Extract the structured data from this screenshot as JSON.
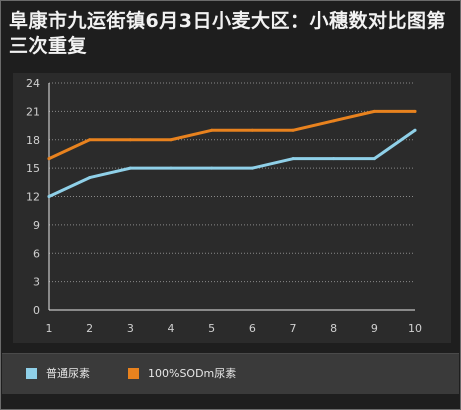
{
  "title": "阜康市九运街镇6月3日小麦大区：小穗数对比图第三次重复",
  "colors": {
    "background": "#1e1e1e",
    "plot_background": "#2b2b2b",
    "legend_background": "#3a3a3a",
    "grid": "#8a8a8a",
    "axis_text": "#d0d0d0"
  },
  "chart_data": {
    "type": "line",
    "title": "阜康市九运街镇6月3日小麦大区：小穗数对比图第三次重复",
    "x": [
      1,
      2,
      3,
      4,
      5,
      6,
      7,
      8,
      9,
      10
    ],
    "xlim": [
      1,
      10
    ],
    "ylim": [
      0,
      24
    ],
    "yticks": [
      0,
      3,
      6,
      9,
      12,
      15,
      18,
      21,
      24
    ],
    "grid": true,
    "legend_position": "bottom",
    "series": [
      {
        "name": "普通尿素",
        "color": "#8fd0e8",
        "values": [
          12,
          14,
          15,
          15,
          15,
          15,
          16,
          16,
          16,
          19
        ]
      },
      {
        "name": "100%SODm尿素",
        "color": "#e8821e",
        "values": [
          16,
          18,
          18,
          18,
          19,
          19,
          19,
          20,
          21,
          21
        ]
      }
    ]
  }
}
